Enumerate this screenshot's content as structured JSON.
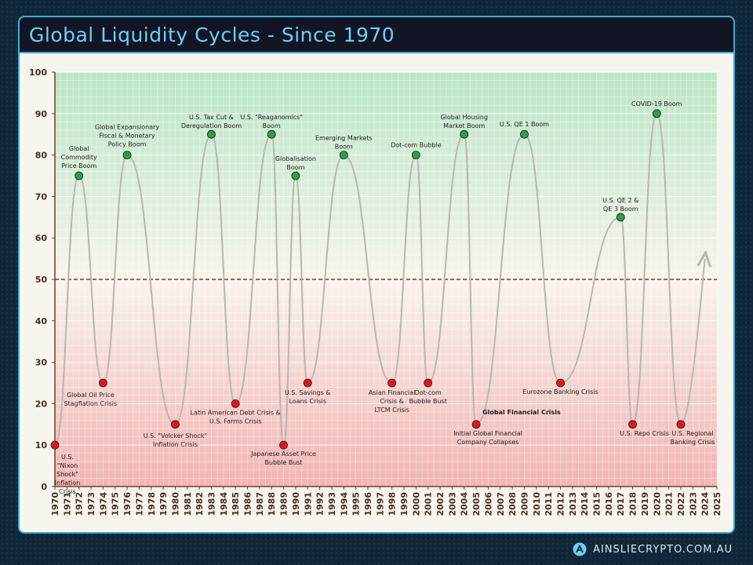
{
  "header": {
    "title": "Global Liquidity Cycles - Since 1970"
  },
  "footer": {
    "brand": "AINSLIECRYPTO.COM.AU",
    "logo_icon": "ainslie-a-logo-icon"
  },
  "colors": {
    "boom_dot": "#2e9e4a",
    "crisis_dot": "#e4161b",
    "line": "#b7b7b0",
    "reference_line": "#7a3a2a",
    "top_zone": "#b9e6c6",
    "bottom_zone": "#f2b4b4"
  },
  "chart_data": {
    "type": "line",
    "title": "Global Liquidity Cycles - Since 1970",
    "xlabel": "",
    "ylabel": "",
    "xlim": [
      1970,
      2025
    ],
    "ylim": [
      0,
      100
    ],
    "x_ticks": [
      1970,
      1971,
      1972,
      1973,
      1974,
      1975,
      1976,
      1977,
      1978,
      1979,
      1980,
      1981,
      1982,
      1983,
      1984,
      1985,
      1986,
      1987,
      1988,
      1989,
      1990,
      1991,
      1992,
      1993,
      1994,
      1995,
      1996,
      1997,
      1998,
      1999,
      2000,
      2001,
      2002,
      2003,
      2004,
      2005,
      2006,
      2007,
      2008,
      2009,
      2010,
      2011,
      2012,
      2013,
      2014,
      2015,
      2016,
      2017,
      2018,
      2019,
      2020,
      2021,
      2022,
      2023,
      2024,
      2025
    ],
    "y_ticks": [
      0,
      10,
      20,
      30,
      40,
      50,
      60,
      70,
      80,
      90,
      100
    ],
    "grid": true,
    "reference_line": {
      "y": 50,
      "style": "dashed"
    },
    "trend_arrow": {
      "from": [
        2022,
        15
      ],
      "to": [
        2024,
        55
      ]
    },
    "points": [
      {
        "x": 1970,
        "y": 10,
        "kind": "crisis",
        "label": "U.S. \"Nixon Shock\" Inflation Crisis"
      },
      {
        "x": 1972,
        "y": 75,
        "kind": "boom",
        "label": "Global Commodity Price Boom"
      },
      {
        "x": 1974,
        "y": 25,
        "kind": "crisis",
        "label": "Global Oil Price Stagflation Crisis"
      },
      {
        "x": 1976,
        "y": 80,
        "kind": "boom",
        "label": "Global Expansionary Fiscal & Monetary Policy Boom"
      },
      {
        "x": 1980,
        "y": 15,
        "kind": "crisis",
        "label": "U.S. \"Volcker Shock\" Inflation Crisis"
      },
      {
        "x": 1983,
        "y": 85,
        "kind": "boom",
        "label": "U.S. Tax Cut & Deregulation Boom"
      },
      {
        "x": 1985,
        "y": 20,
        "kind": "crisis",
        "label": "Latin American Debt Crisis & U.S. Farms Crisis"
      },
      {
        "x": 1988,
        "y": 85,
        "kind": "boom",
        "label": "U.S. \"Reaganomics\" Boom"
      },
      {
        "x": 1989,
        "y": 10,
        "kind": "crisis",
        "label": "Japanese Asset Price Bubble Bust"
      },
      {
        "x": 1990,
        "y": 75,
        "kind": "boom",
        "label": "Globalisation Boom"
      },
      {
        "x": 1991,
        "y": 25,
        "kind": "crisis",
        "label": "U.S. Savings & Loans Crisis"
      },
      {
        "x": 1994,
        "y": 80,
        "kind": "boom",
        "label": "Emerging Markets Boom"
      },
      {
        "x": 1998,
        "y": 25,
        "kind": "crisis",
        "label": "Asian Financial Crisis & LTCM Crisis"
      },
      {
        "x": 2000,
        "y": 80,
        "kind": "boom",
        "label": "Dot-com Bubble"
      },
      {
        "x": 2001,
        "y": 25,
        "kind": "crisis",
        "label": "Dot-com Bubble Bust"
      },
      {
        "x": 2004,
        "y": 85,
        "kind": "boom",
        "label": "Global Housing Market Boom"
      },
      {
        "x": 2005,
        "y": 15,
        "kind": "crisis",
        "label": "Initial Global Financial Company Collapses",
        "extra_label": "Global Financial Crisis"
      },
      {
        "x": 2009,
        "y": 85,
        "kind": "boom",
        "label": "U.S. QE 1 Boom"
      },
      {
        "x": 2012,
        "y": 25,
        "kind": "crisis",
        "label": "Eurozone Banking Crisis"
      },
      {
        "x": 2017,
        "y": 65,
        "kind": "boom",
        "label": "U.S. QE 2 & QE 3 Boom"
      },
      {
        "x": 2018,
        "y": 15,
        "kind": "crisis",
        "label": "U.S. Repo Crisis"
      },
      {
        "x": 2020,
        "y": 90,
        "kind": "boom",
        "label": "COVID-19 Boom"
      },
      {
        "x": 2022,
        "y": 15,
        "kind": "crisis",
        "label": "U.S. Regional Banking Crisis"
      }
    ]
  }
}
